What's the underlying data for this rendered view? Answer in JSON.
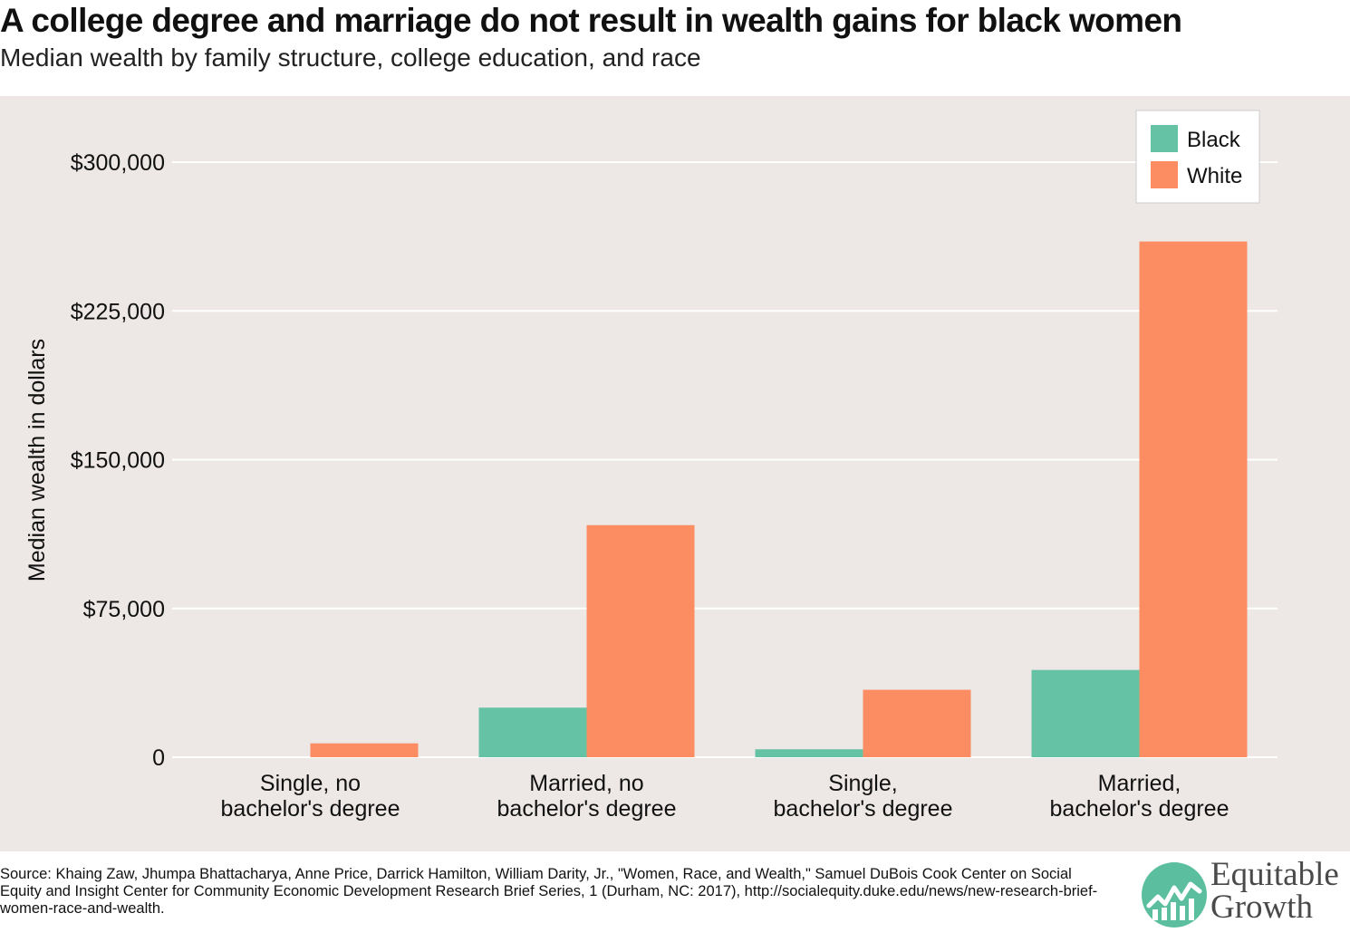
{
  "title": "A college degree and marriage do not result in wealth gains for black women",
  "subtitle": "Median wealth by family structure, college education, and race",
  "source": "Source: Khaing Zaw, Jhumpa Bhattacharya, Anne Price, Darrick Hamilton, William Darity, Jr., \"Women, Race, and Wealth,\" Samuel DuBois Cook Center on Social Equity and Insight Center for Community Economic Development Research Brief Series, 1 (Durham, NC: 2017), http://socialequity.duke.edu/news/new-research-brief-women-race-and-wealth.",
  "brand": {
    "line1": "Equitable",
    "line2": "Growth",
    "icon": "growth-chart-logo-icon",
    "color": "#5bbf9f"
  },
  "colors": {
    "black": "#66c2a5",
    "white": "#fc8d62",
    "plot_bg": "#ede8e6",
    "grid": "#ffffff"
  },
  "chart_data": {
    "type": "bar",
    "title": "A college degree and marriage do not result in wealth gains for black women",
    "subtitle": "Median wealth by family structure, college education, and race",
    "xlabel": "",
    "ylabel": "Median wealth in dollars",
    "ylim": [
      0,
      330000
    ],
    "yticks": [
      0,
      75000,
      150000,
      225000,
      300000
    ],
    "ytick_labels": [
      "0",
      "$75,000",
      "$150,000",
      "$225,000",
      "$300,000"
    ],
    "grid": true,
    "legend_position": "top-right",
    "categories": [
      [
        "Single, no",
        "bachelor's degree"
      ],
      [
        "Married, no",
        "bachelor's degree"
      ],
      [
        "Single,",
        "bachelor's degree"
      ],
      [
        "Married,",
        "bachelor's degree"
      ]
    ],
    "series": [
      {
        "name": "Black",
        "color": "#66c2a5",
        "values": [
          0,
          25000,
          4000,
          44000
        ]
      },
      {
        "name": "White",
        "color": "#fc8d62",
        "values": [
          7000,
          117000,
          34000,
          260000
        ]
      }
    ]
  }
}
